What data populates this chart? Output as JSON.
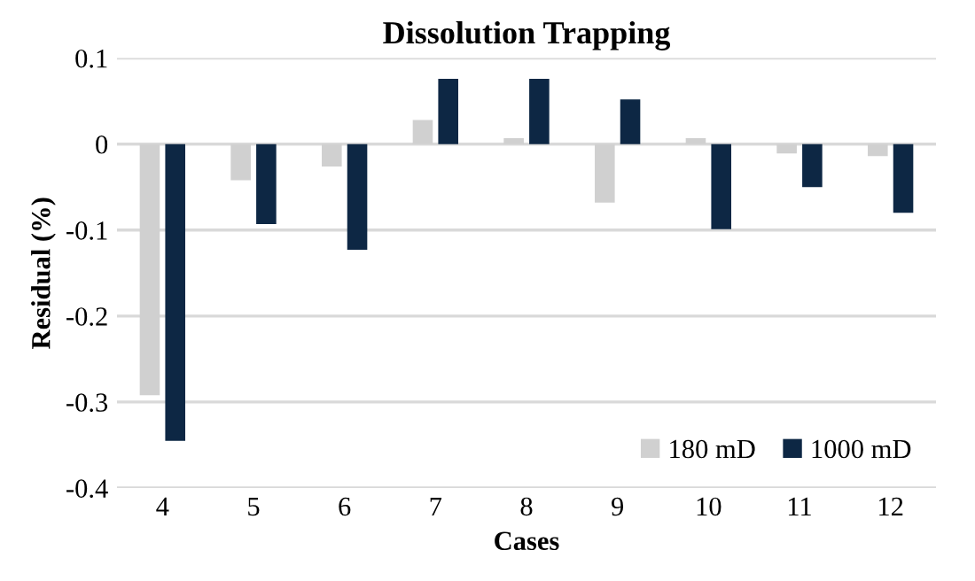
{
  "chart_data": {
    "type": "bar",
    "title": "Dissolution Trapping",
    "xlabel": "Cases",
    "ylabel": "Residual (%)",
    "categories": [
      "4",
      "5",
      "6",
      "7",
      "8",
      "9",
      "10",
      "11",
      "12"
    ],
    "series": [
      {
        "name": "180 mD",
        "color": "#d0d0d0",
        "values": [
          -0.292,
          -0.042,
          -0.026,
          0.028,
          0.007,
          -0.068,
          0.007,
          -0.011,
          -0.014
        ]
      },
      {
        "name": "1000 mD",
        "color": "#0d2744",
        "values": [
          -0.345,
          -0.093,
          -0.123,
          0.076,
          0.076,
          0.052,
          -0.099,
          -0.05,
          -0.08
        ]
      }
    ],
    "ylim": [
      -0.4,
      0.1
    ],
    "yticks": [
      0.1,
      0,
      {
        "value": -0.1,
        "label": "-0.1"
      },
      {
        "value": -0.2,
        "label": "-0.2"
      },
      {
        "value": -0.3,
        "label": "-0.3"
      },
      {
        "value": -0.4,
        "label": "-0.4"
      }
    ],
    "grid": "y",
    "legend": "bottom right"
  }
}
